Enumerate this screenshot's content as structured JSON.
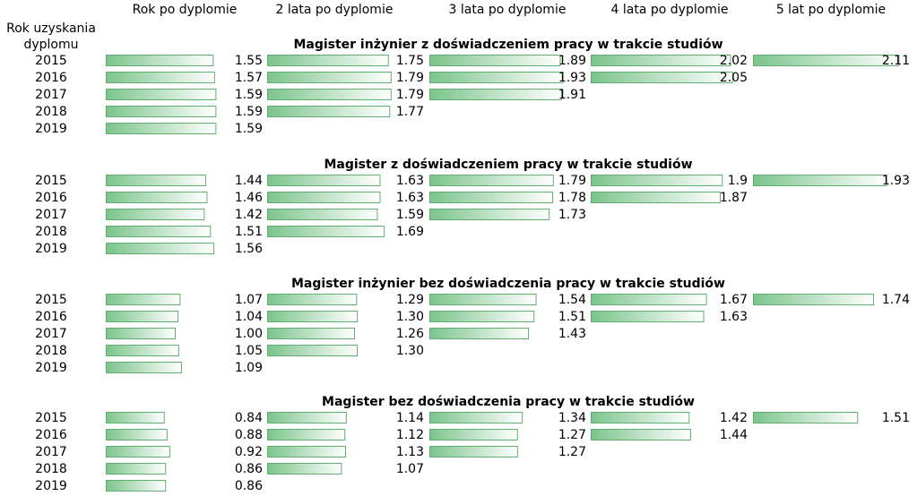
{
  "chart_data": {
    "type": "bar",
    "row_header": [
      "Rok uzyskania",
      "dyplomu"
    ],
    "columns": [
      "Rok po dyplomie",
      "2 lata po dyplomie",
      "3 lata po dyplomie",
      "4 lata po dyplomie",
      "5 lat po dyplomie"
    ],
    "colors": {
      "bar_dark": "#7cc48c",
      "bar_light": "#ffffff",
      "bar_border": "#5fae6f"
    },
    "panels": [
      {
        "title": "Magister inżynier z doświadczeniem pracy w trakcie studiów",
        "years": [
          "2015",
          "2016",
          "2017",
          "2018",
          "2019"
        ],
        "values": [
          [
            "1.55",
            "1.75",
            "1.89",
            "2.02",
            "2.11"
          ],
          [
            "1.57",
            "1.79",
            "1.93",
            "2.05",
            null
          ],
          [
            "1.59",
            "1.79",
            "1.91",
            null,
            null
          ],
          [
            "1.59",
            "1.77",
            null,
            null,
            null
          ],
          [
            "1.59",
            null,
            null,
            null,
            null
          ]
        ]
      },
      {
        "title": "Magister z doświadczeniem pracy w trakcie studiów",
        "years": [
          "2015",
          "2016",
          "2017",
          "2018",
          "2019"
        ],
        "values": [
          [
            "1.44",
            "1.63",
            "1.79",
            "1.9",
            "1.93"
          ],
          [
            "1.46",
            "1.63",
            "1.78",
            "1.87",
            null
          ],
          [
            "1.42",
            "1.59",
            "1.73",
            null,
            null
          ],
          [
            "1.51",
            "1.69",
            null,
            null,
            null
          ],
          [
            "1.56",
            null,
            null,
            null,
            null
          ]
        ]
      },
      {
        "title": "Magister inżynier bez doświadczenia pracy w trakcie studiów",
        "years": [
          "2015",
          "2016",
          "2017",
          "2018",
          "2019"
        ],
        "values": [
          [
            "1.07",
            "1.29",
            "1.54",
            "1.67",
            "1.74"
          ],
          [
            "1.04",
            "1.30",
            "1.51",
            "1.63",
            null
          ],
          [
            "1.00",
            "1.26",
            "1.43",
            null,
            null
          ],
          [
            "1.05",
            "1.30",
            null,
            null,
            null
          ],
          [
            "1.09",
            null,
            null,
            null,
            null
          ]
        ]
      },
      {
        "title": "Magister  bez doświadczenia pracy w trakcie studiów",
        "years": [
          "2015",
          "2016",
          "2017",
          "2018",
          "2019"
        ],
        "values": [
          [
            "0.84",
            "1.14",
            "1.34",
            "1.42",
            "1.51"
          ],
          [
            "0.88",
            "1.12",
            "1.27",
            "1.44",
            null
          ],
          [
            "0.92",
            "1.13",
            "1.27",
            null,
            null
          ],
          [
            "0.86",
            "1.07",
            null,
            null,
            null
          ],
          [
            "0.86",
            null,
            null,
            null,
            null
          ]
        ]
      }
    ]
  }
}
